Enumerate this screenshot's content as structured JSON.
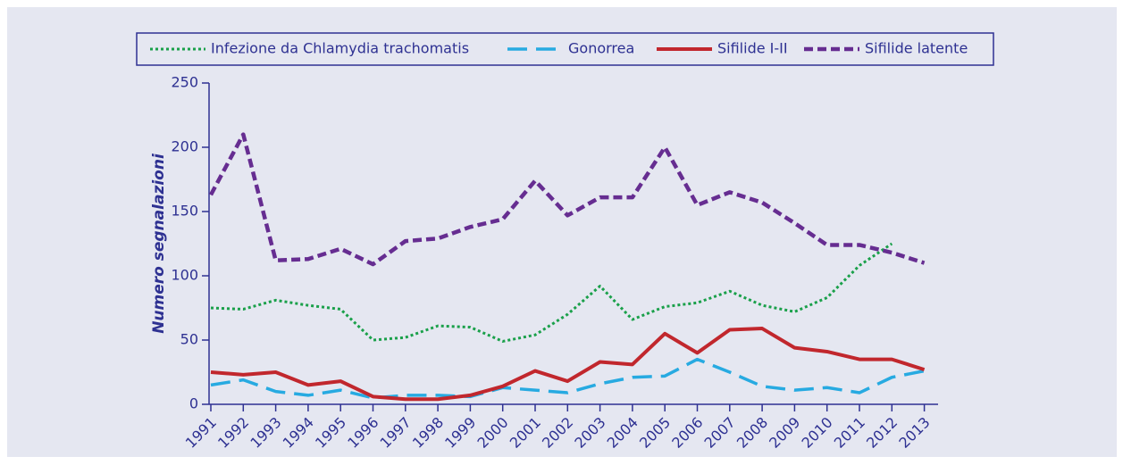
{
  "chart_data": {
    "type": "line",
    "y_label": "Numero segnalazioni",
    "categories": [
      "1991",
      "1992",
      "1993",
      "1994",
      "1995",
      "1996",
      "1997",
      "1998",
      "1999",
      "2000",
      "2001",
      "2002",
      "2003",
      "2004",
      "2005",
      "2006",
      "2007",
      "2008",
      "2009",
      "2010",
      "2011",
      "2012",
      "2013"
    ],
    "series": [
      {
        "name": "Infezione da Chlamydia trachomatis",
        "color": "#1aa04a",
        "values": [
          75,
          74,
          81,
          77,
          74,
          50,
          52,
          61,
          60,
          49,
          54,
          70,
          92,
          66,
          76,
          79,
          88,
          77,
          72,
          83,
          108,
          125,
          null
        ]
      },
      {
        "name": "Gonorrea",
        "color": "#27aae1",
        "values": [
          15,
          19,
          10,
          7,
          11,
          5,
          7,
          7,
          6,
          13,
          11,
          9,
          16,
          21,
          22,
          35,
          25,
          14,
          11,
          13,
          9,
          21,
          26
        ]
      },
      {
        "name": "Sifilide I-II",
        "color": "#c1272d",
        "values": [
          25,
          23,
          25,
          15,
          18,
          6,
          4,
          4,
          7,
          14,
          26,
          18,
          33,
          31,
          55,
          40,
          58,
          59,
          44,
          41,
          35,
          35,
          27
        ]
      },
      {
        "name": "Sifilide latente",
        "color": "#662d91",
        "values": [
          163,
          210,
          112,
          113,
          121,
          109,
          127,
          129,
          138,
          144,
          174,
          147,
          161,
          161,
          200,
          155,
          165,
          157,
          141,
          124,
          124,
          118,
          110
        ]
      }
    ],
    "ylim": [
      0,
      250
    ],
    "yticks": [
      0,
      50,
      100,
      150,
      200,
      250
    ]
  }
}
